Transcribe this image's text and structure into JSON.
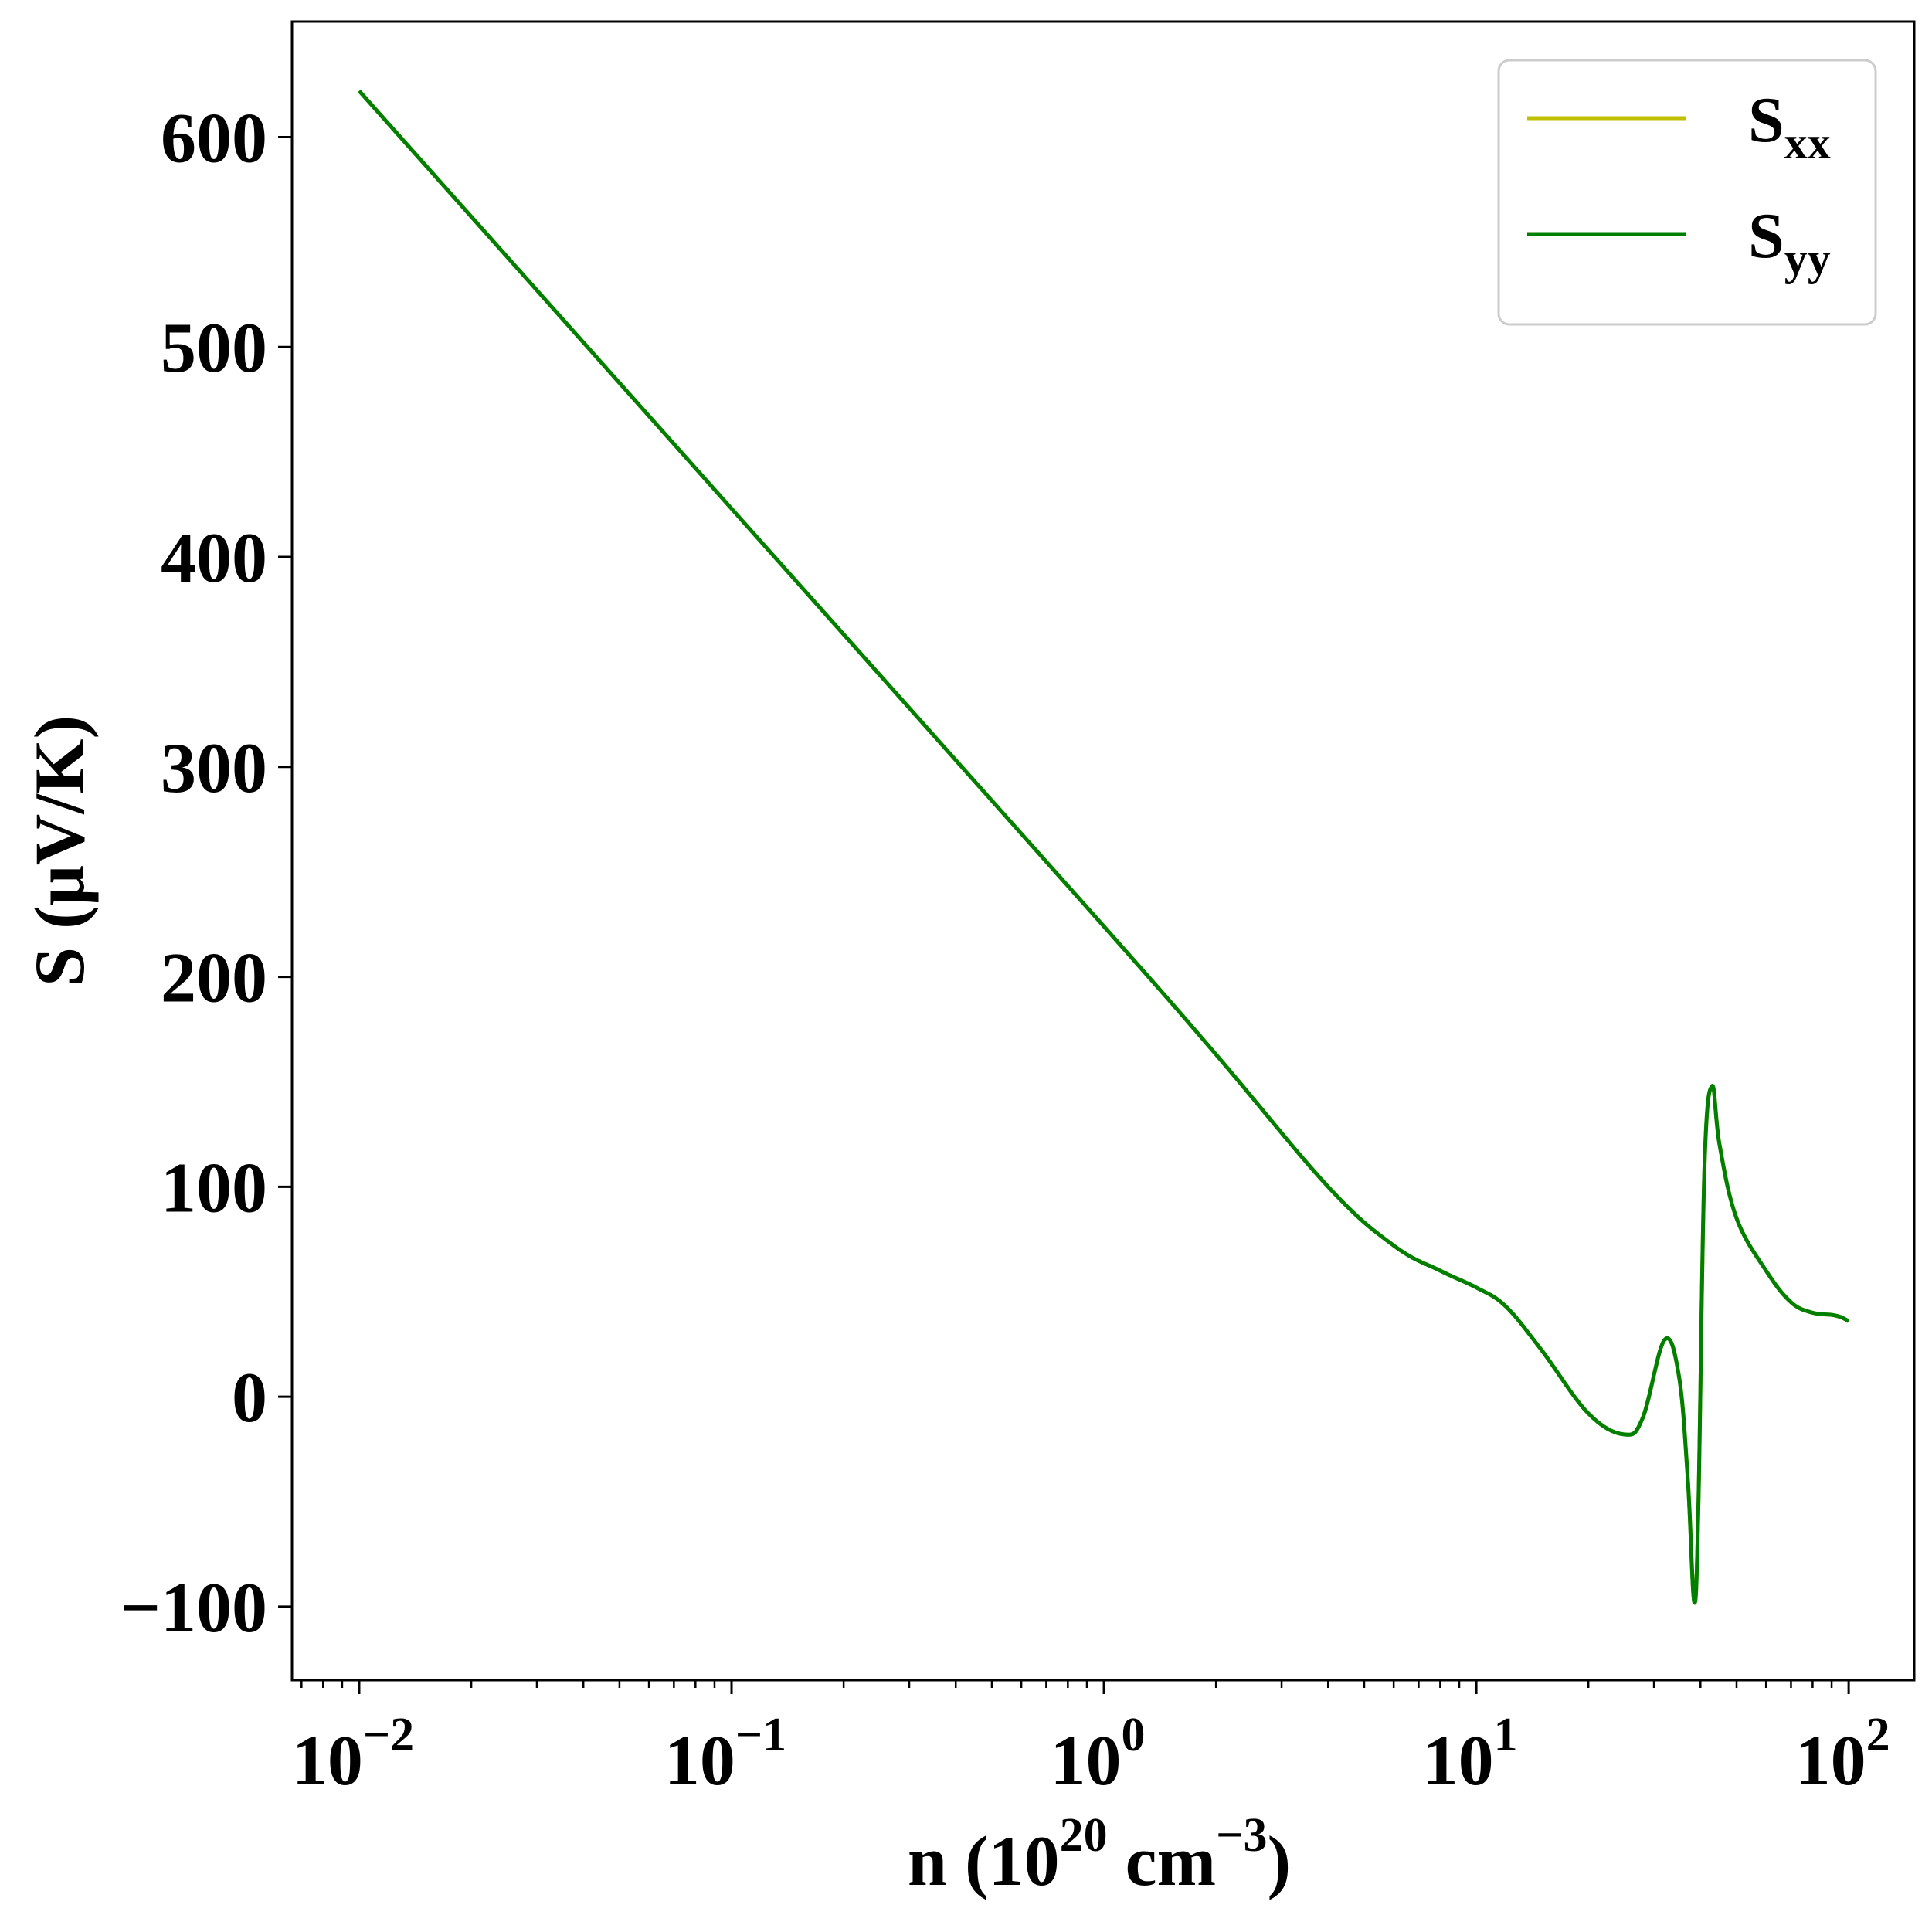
{
  "chart_data": {
    "type": "line",
    "title": "",
    "xlabel": {
      "main": "n (10",
      "sup": "20",
      "mid": " cm",
      "sup2": "−3",
      "end": ")"
    },
    "ylabel": "S (μV/K)",
    "xscale": "log",
    "xlim": [
      0.0066,
      150
    ],
    "ylim": [
      -135,
      655
    ],
    "x_ticks": [
      {
        "value": 0.01,
        "base": "10",
        "exp": "−2"
      },
      {
        "value": 0.1,
        "base": "10",
        "exp": "−1"
      },
      {
        "value": 1,
        "base": "10",
        "exp": "0"
      },
      {
        "value": 10,
        "base": "10",
        "exp": "1"
      },
      {
        "value": 100,
        "base": "10",
        "exp": "2"
      }
    ],
    "y_ticks": [
      {
        "value": -100,
        "label": "−100"
      },
      {
        "value": 0,
        "label": "0"
      },
      {
        "value": 100,
        "label": "100"
      },
      {
        "value": 200,
        "label": "200"
      },
      {
        "value": 300,
        "label": "300"
      },
      {
        "value": 400,
        "label": "400"
      },
      {
        "value": 500,
        "label": "500"
      },
      {
        "value": 600,
        "label": "600"
      }
    ],
    "grid": false,
    "legend_position": "top-right",
    "series": [
      {
        "name": "S",
        "sub": "xx",
        "color": "#bfbf00",
        "x": [
          0.01,
          0.1,
          1,
          2,
          4,
          6,
          8,
          10,
          12,
          15,
          20,
          25,
          28,
          32,
          35,
          37,
          38.5,
          39.5,
          41,
          43,
          45,
          50,
          60,
          70,
          80,
          90,
          95,
          100
        ],
        "y": [
          622,
          423,
          224,
          163,
          100,
          72,
          60,
          52,
          43,
          22,
          -8,
          -18,
          -10,
          27,
          10,
          -40,
          -98,
          -50,
          110,
          148,
          120,
          85,
          60,
          45,
          40,
          39,
          38,
          36
        ]
      },
      {
        "name": "S",
        "sub": "yy",
        "color": "#007f00",
        "x": [
          0.01,
          0.1,
          1,
          2,
          4,
          6,
          8,
          10,
          12,
          15,
          20,
          25,
          28,
          32,
          35,
          37,
          38.5,
          39.5,
          41,
          43,
          45,
          50,
          60,
          70,
          80,
          90,
          95,
          100
        ],
        "y": [
          622,
          423,
          224,
          163,
          100,
          72,
          60,
          52,
          43,
          22,
          -8,
          -18,
          -10,
          27,
          10,
          -40,
          -98,
          -50,
          110,
          148,
          120,
          85,
          60,
          45,
          40,
          39,
          38,
          36
        ]
      }
    ]
  }
}
